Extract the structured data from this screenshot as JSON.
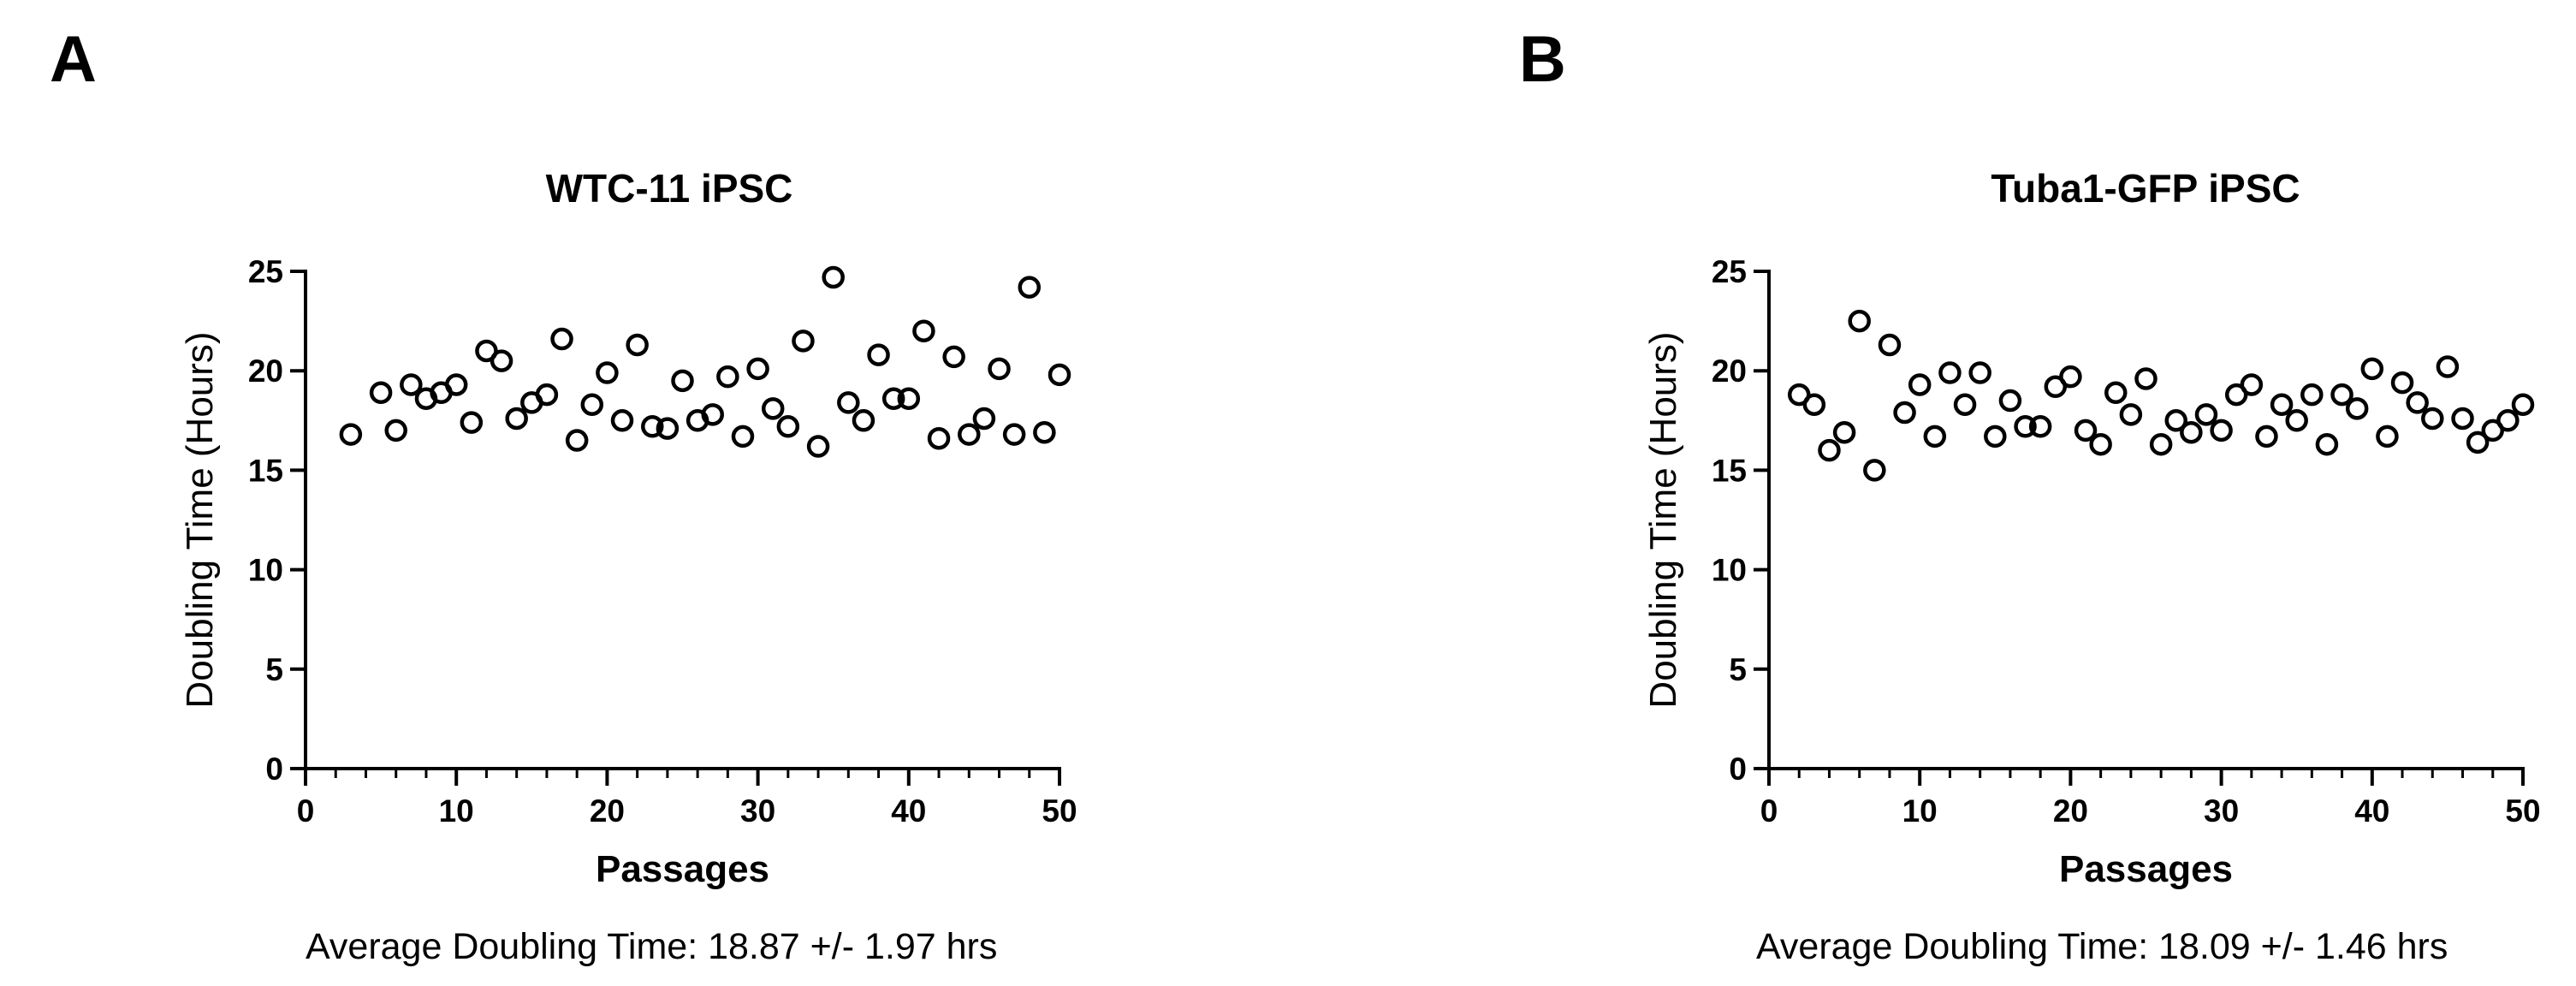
{
  "figure": {
    "panel_a_label": "A",
    "panel_b_label": "B",
    "panel_a_note": "Average Doubling Time: 18.87 +/- 1.97 hrs",
    "panel_b_note": "Average Doubling Time: 18.09 +/- 1.46 hrs"
  },
  "colors": {
    "marker": "#000000",
    "axis": "#000000",
    "background": "#ffffff"
  },
  "chart_data": [
    {
      "type": "scatter",
      "title": "WTC-11 iPSC",
      "xlabel": "Passages",
      "ylabel": "Doubling Time (Hours)",
      "xlim": [
        0,
        50
      ],
      "ylim": [
        0,
        25
      ],
      "xticks": [
        0,
        10,
        20,
        30,
        40,
        50
      ],
      "yticks": [
        0,
        5,
        10,
        15,
        20,
        25
      ],
      "grid": false,
      "series": [
        {
          "name": "WTC-11 iPSC",
          "x": [
            3,
            5,
            6,
            7,
            8,
            9,
            10,
            11,
            12,
            13,
            14,
            15,
            16,
            17,
            18,
            19,
            20,
            21,
            22,
            23,
            24,
            25,
            26,
            27,
            28,
            29,
            30,
            31,
            32,
            33,
            34,
            35,
            36,
            37,
            38,
            39,
            40,
            41,
            42,
            43,
            44,
            45,
            46,
            47,
            48,
            49,
            50
          ],
          "y": [
            16.8,
            18.9,
            17.0,
            19.3,
            18.6,
            18.9,
            19.3,
            17.4,
            21.0,
            20.5,
            17.6,
            18.4,
            18.8,
            21.6,
            16.5,
            18.3,
            19.9,
            17.5,
            21.3,
            17.2,
            17.1,
            19.5,
            17.5,
            17.8,
            19.7,
            16.7,
            20.1,
            18.1,
            17.2,
            21.5,
            16.2,
            24.7,
            18.4,
            17.5,
            20.8,
            18.6,
            18.6,
            22.0,
            16.6,
            20.7,
            16.8,
            17.6,
            20.1,
            16.8,
            24.2,
            16.9,
            19.8
          ]
        }
      ]
    },
    {
      "type": "scatter",
      "title": "Tuba1-GFP iPSC",
      "xlabel": "Passages",
      "ylabel": "Doubling Time (Hours)",
      "xlim": [
        0,
        50
      ],
      "ylim": [
        0,
        25
      ],
      "xticks": [
        0,
        10,
        20,
        30,
        40,
        50
      ],
      "yticks": [
        0,
        5,
        10,
        15,
        20,
        25
      ],
      "grid": false,
      "series": [
        {
          "name": "Tuba1-GFP iPSC",
          "x": [
            2,
            3,
            4,
            5,
            6,
            7,
            8,
            9,
            10,
            11,
            12,
            13,
            14,
            15,
            16,
            17,
            18,
            19,
            20,
            21,
            22,
            23,
            24,
            25,
            26,
            27,
            28,
            29,
            30,
            31,
            32,
            33,
            34,
            35,
            36,
            37,
            38,
            39,
            40,
            41,
            42,
            43,
            44,
            45,
            46,
            47,
            48,
            49,
            50
          ],
          "y": [
            18.8,
            18.3,
            16.0,
            16.9,
            22.5,
            15.0,
            21.3,
            17.9,
            19.3,
            16.7,
            19.9,
            18.3,
            19.9,
            16.7,
            18.5,
            17.2,
            17.2,
            19.2,
            19.7,
            17.0,
            16.3,
            18.9,
            17.8,
            19.6,
            16.3,
            17.5,
            16.9,
            17.8,
            17.0,
            18.8,
            19.3,
            16.7,
            18.3,
            17.5,
            18.8,
            16.3,
            18.8,
            18.1,
            20.1,
            16.7,
            19.4,
            18.4,
            17.6,
            20.2,
            17.6,
            16.4,
            17.0,
            17.5,
            18.3
          ]
        }
      ]
    }
  ]
}
